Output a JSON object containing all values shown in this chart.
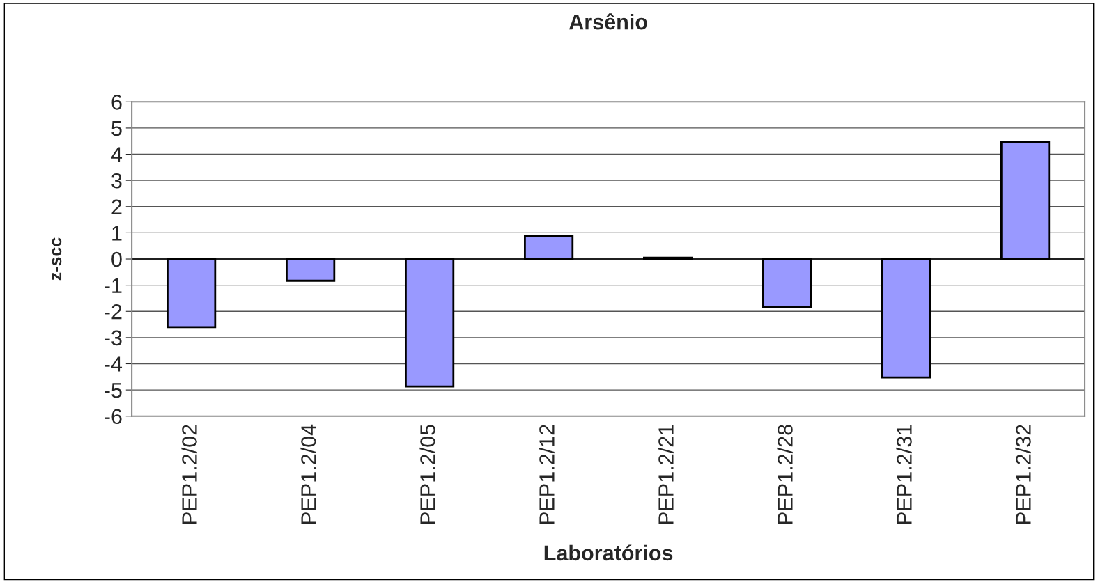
{
  "chart_data": {
    "type": "bar",
    "title": "Arsênio",
    "xlabel": "Laboratórios",
    "ylabel": "z-scc",
    "categories": [
      "PEP1.2/02",
      "PEP1.2/04",
      "PEP1.2/05",
      "PEP1.2/12",
      "PEP1.2/21",
      "PEP1.2/28",
      "PEP1.2/31",
      "PEP1.2/32"
    ],
    "values": [
      -2.6,
      -0.83,
      -4.87,
      0.88,
      0.05,
      -1.84,
      -4.52,
      4.46
    ],
    "color": "#9999ff",
    "ylim": [
      -6,
      6
    ],
    "yticks": [
      -6,
      -5,
      -4,
      -3,
      -2,
      -1,
      0,
      1,
      2,
      3,
      4,
      5,
      6
    ],
    "grid": "y"
  }
}
